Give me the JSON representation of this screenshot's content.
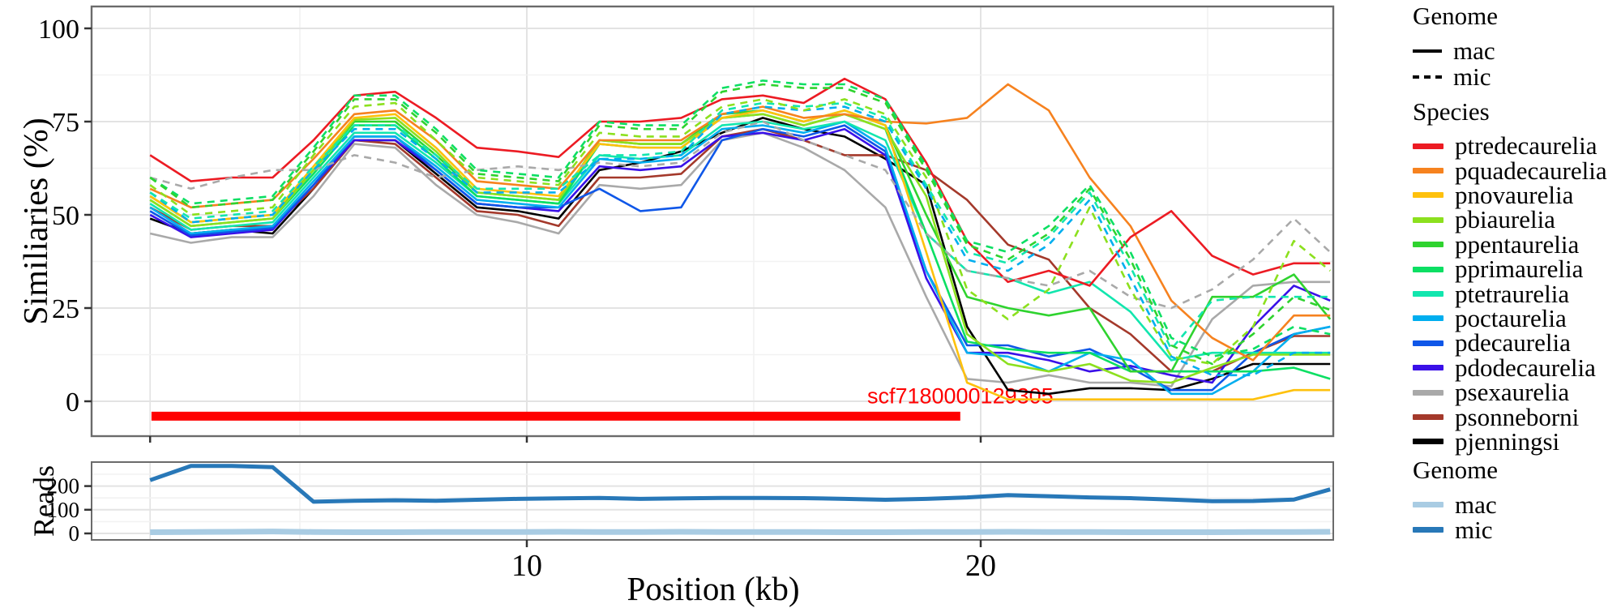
{
  "styles": {
    "background": "#ffffff",
    "grid_major": "#e3e3e3",
    "grid_minor": "#f2f2f2",
    "panel_border": "#6b6b6b",
    "tick_color": "#333333",
    "annotation_red": "#ff0000",
    "reads_mac_color": "#a9cce3",
    "reads_mic_color": "#2878b8"
  },
  "legends": {
    "genome_top": {
      "title": "Genome",
      "items": [
        {
          "label": "mac",
          "style": "solid"
        },
        {
          "label": "mic",
          "style": "dashed"
        }
      ]
    },
    "species": {
      "title": "Species",
      "items": [
        {
          "label": "ptredecaurelia",
          "color": "#ec1b23"
        },
        {
          "label": "pquadecaurelia",
          "color": "#f6821f"
        },
        {
          "label": "pnovaurelia",
          "color": "#fec10d"
        },
        {
          "label": "pbiaurelia",
          "color": "#8ce01e"
        },
        {
          "label": "ppentaurelia",
          "color": "#2fd32f"
        },
        {
          "label": "pprimaurelia",
          "color": "#0cdf63"
        },
        {
          "label": "ptetraurelia",
          "color": "#12e6ae"
        },
        {
          "label": "poctaurelia",
          "color": "#00aeef"
        },
        {
          "label": "pdecaurelia",
          "color": "#0f57e8"
        },
        {
          "label": "pdodecaurelia",
          "color": "#3a10e8"
        },
        {
          "label": "psexaurelia",
          "color": "#a9a9a9"
        },
        {
          "label": "psonneborni",
          "color": "#a4392b"
        },
        {
          "label": "pjenningsi",
          "color": "#000000"
        }
      ]
    },
    "genome_bottom": {
      "title": "Genome",
      "items": [
        {
          "label": "mac",
          "color": "#a9cce3"
        },
        {
          "label": "mic",
          "color": "#2878b8"
        }
      ]
    }
  },
  "chart_data": [
    {
      "type": "line",
      "panel": "similarity",
      "ylabel": "Similiaries (%)",
      "xlabel": "Position (kb)",
      "y_ticks": [
        0,
        25,
        50,
        75,
        100
      ],
      "y_minor": [
        12.5,
        37.5,
        62.5,
        87.5
      ],
      "x_ticks": [
        10,
        20
      ],
      "x_minor": [
        5,
        15,
        25
      ],
      "x_extra_gridlines_kb": [
        1.7
      ],
      "ylim": [
        -9.5,
        106
      ],
      "xlim": [
        0.4,
        28.4
      ],
      "legend_position": "right",
      "grid": true,
      "annotation": {
        "label": "scf7180000129305",
        "bar_start_kb": 1.73,
        "bar_end_kb": 19.55,
        "bar_value": -4,
        "color": "#ff0000"
      },
      "x_kb": [
        1.7,
        2.6,
        3.5,
        4.4,
        5.3,
        6.2,
        7.1,
        8.0,
        8.9,
        9.8,
        10.7,
        11.6,
        12.5,
        13.4,
        14.3,
        15.2,
        16.1,
        17.0,
        17.9,
        18.8,
        19.7,
        20.6,
        21.5,
        22.4,
        23.3,
        24.2,
        25.1,
        26.0,
        26.9,
        27.7
      ],
      "series": [
        {
          "species": "psexaurelia",
          "genome": "mac",
          "color": "#a9a9a9",
          "dashed": false,
          "values": [
            45,
            42.5,
            44,
            44,
            55,
            69,
            68,
            58,
            50,
            48,
            45,
            58,
            57,
            58,
            70,
            72,
            68,
            62,
            52,
            28,
            6,
            5,
            7,
            5,
            5,
            4,
            22,
            31,
            32,
            32
          ]
        },
        {
          "species": "pjenningsi",
          "genome": "mac",
          "color": "#000000",
          "dashed": false,
          "values": [
            49,
            45,
            46,
            45,
            57,
            70,
            70,
            61,
            52,
            51,
            49,
            62,
            64,
            67,
            72,
            76,
            73,
            71,
            65,
            58,
            20,
            3,
            2,
            3.5,
            3.5,
            3,
            6,
            10,
            10,
            10
          ]
        },
        {
          "species": "psonneborni",
          "genome": "mac",
          "color": "#a4392b",
          "dashed": false,
          "values": [
            52,
            46,
            47,
            47,
            57,
            70,
            69,
            60,
            51,
            50,
            47,
            60,
            60,
            61,
            71,
            73,
            70,
            66,
            66,
            62,
            54,
            42,
            38,
            25,
            18,
            8,
            8,
            13,
            17.5,
            17.5
          ]
        },
        {
          "species": "pdodecaurelia",
          "genome": "mac",
          "color": "#3a10e8",
          "dashed": false,
          "values": [
            50,
            44,
            45,
            46,
            58,
            70,
            70,
            62,
            53,
            52,
            51,
            63,
            62,
            63,
            71,
            72,
            70,
            73,
            66,
            33,
            13,
            13,
            11,
            8,
            9.5,
            7,
            5,
            20,
            31,
            27
          ]
        },
        {
          "species": "pdecaurelia",
          "genome": "mac",
          "color": "#0f57e8",
          "dashed": false,
          "values": [
            51,
            44.5,
            45.5,
            46.5,
            58,
            71,
            71,
            62,
            53,
            52,
            52,
            57,
            51,
            52,
            70,
            73,
            71,
            74,
            67,
            35,
            15,
            15,
            12,
            14,
            9,
            3,
            3,
            13,
            18,
            20
          ]
        },
        {
          "species": "poctaurelia",
          "genome": "mac",
          "color": "#00aeef",
          "dashed": false,
          "values": [
            52,
            45,
            46,
            47,
            59,
            71,
            71,
            63,
            54,
            53,
            52,
            65,
            64,
            65,
            73,
            74,
            72,
            75,
            68,
            35,
            13,
            12,
            8,
            13,
            11,
            2,
            2,
            8,
            18,
            20
          ]
        },
        {
          "species": "ptetraurelia",
          "genome": "mac",
          "color": "#12e6ae",
          "dashed": false,
          "values": [
            53,
            46,
            47,
            48,
            60,
            72,
            72,
            64,
            55,
            54,
            53,
            66,
            65,
            66,
            74,
            75,
            73,
            75,
            70,
            45,
            35,
            33,
            29,
            32,
            24,
            11,
            13,
            13,
            13,
            13
          ]
        },
        {
          "species": "pprimaurelia",
          "genome": "mac",
          "color": "#0cdf63",
          "dashed": false,
          "values": [
            54,
            47,
            48,
            49,
            61,
            74,
            74,
            65,
            55,
            54,
            53,
            69,
            68,
            68,
            76,
            77,
            74,
            77,
            73,
            45,
            16,
            14,
            13,
            13,
            8,
            8,
            8,
            8,
            9,
            6
          ]
        },
        {
          "species": "ppentaurelia",
          "genome": "mac",
          "color": "#2fd32f",
          "dashed": false,
          "values": [
            55,
            48,
            49,
            50,
            62,
            75,
            75,
            66,
            56,
            55,
            54,
            70,
            69,
            69,
            77,
            78,
            75,
            78,
            74,
            50,
            28,
            25,
            23,
            25,
            8,
            8,
            28,
            28,
            34,
            22
          ]
        },
        {
          "species": "pbiaurelia",
          "genome": "mac",
          "color": "#8ce01e",
          "dashed": false,
          "values": [
            54,
            47,
            48,
            49,
            62,
            75.5,
            76,
            67,
            56,
            55,
            54,
            70,
            69,
            69,
            76,
            77,
            74,
            77,
            73,
            55,
            18,
            10,
            8,
            10,
            5.5,
            5,
            9,
            12.5,
            12.5,
            12.5
          ]
        },
        {
          "species": "pnovaurelia",
          "genome": "mac",
          "color": "#fec10d",
          "dashed": false,
          "values": [
            55,
            48,
            49,
            50,
            63,
            76,
            77,
            68,
            57,
            56,
            55,
            69,
            68,
            68,
            76,
            78,
            75,
            78,
            74,
            40,
            5,
            0.5,
            0.5,
            0.5,
            0.5,
            0.5,
            0.5,
            0.5,
            3,
            3
          ]
        },
        {
          "species": "pquadecaurelia",
          "genome": "mac",
          "color": "#f6821f",
          "dashed": false,
          "values": [
            57,
            52,
            53,
            54,
            65,
            77,
            78,
            70,
            59,
            58,
            57,
            70,
            70,
            70,
            77,
            79,
            76,
            77,
            75,
            74.5,
            76,
            85,
            78,
            60,
            47,
            27,
            17,
            11,
            23,
            23
          ]
        },
        {
          "species": "ptredecaurelia",
          "genome": "mac",
          "color": "#ec1b23",
          "dashed": false,
          "values": [
            66,
            59,
            60,
            60,
            70,
            82,
            83,
            76,
            68,
            67,
            65.5,
            75,
            75,
            76,
            81,
            82,
            80,
            86.5,
            81,
            64,
            43,
            32,
            35,
            31,
            44,
            51,
            39,
            34,
            37,
            37
          ]
        },
        {
          "species": "psexaurelia",
          "genome": "mic",
          "color": "#a9a9a9",
          "dashed": true,
          "values": [
            60,
            57,
            60,
            62,
            62,
            66,
            64,
            60,
            62,
            63,
            62,
            64,
            63,
            64,
            72,
            75,
            70,
            66,
            62,
            45,
            35,
            33,
            31,
            35,
            28,
            25,
            30,
            38,
            49,
            40
          ]
        },
        {
          "species": "poctaurelia",
          "genome": "mic",
          "color": "#00aeef",
          "dashed": true,
          "values": [
            56,
            48,
            49,
            50,
            62,
            73,
            73,
            65,
            56,
            56,
            56,
            65,
            65,
            66,
            77,
            79,
            78,
            79,
            75,
            57,
            38,
            35,
            42,
            54,
            33,
            12,
            7,
            7,
            13,
            13
          ]
        },
        {
          "species": "ptetraurelia",
          "genome": "mic",
          "color": "#12e6ae",
          "dashed": true,
          "values": [
            56,
            49,
            50,
            51,
            63,
            74,
            74,
            66,
            57,
            57,
            57,
            66,
            66,
            67,
            78,
            80,
            79,
            80,
            76,
            58,
            40,
            37,
            44,
            56,
            36,
            14,
            27,
            28,
            28,
            28
          ]
        },
        {
          "species": "pprimaurelia",
          "genome": "mic",
          "color": "#0cdf63",
          "dashed": true,
          "values": [
            60,
            53,
            54,
            55,
            68,
            82,
            82,
            73,
            62,
            61,
            60,
            75,
            74,
            74,
            84,
            86,
            85,
            85,
            81,
            63,
            43,
            40,
            47,
            58,
            40,
            17,
            12,
            14,
            20,
            18
          ]
        },
        {
          "species": "ppentaurelia",
          "genome": "mic",
          "color": "#2fd32f",
          "dashed": true,
          "values": [
            60,
            52,
            53,
            54,
            67,
            81,
            81,
            72,
            61,
            60,
            59,
            74,
            73,
            73,
            83,
            85,
            84,
            84,
            80,
            62,
            42,
            38,
            45,
            57,
            38,
            15,
            10,
            18,
            28,
            24.5
          ]
        },
        {
          "species": "pbiaurelia",
          "genome": "mic",
          "color": "#8ce01e",
          "dashed": true,
          "values": [
            58,
            50,
            51,
            52,
            66,
            79,
            80,
            70,
            60,
            59,
            58,
            72,
            71,
            71,
            79,
            81,
            78,
            81,
            77,
            60,
            30,
            22,
            30,
            52,
            30,
            12,
            10,
            20,
            43,
            35
          ]
        }
      ]
    },
    {
      "type": "line",
      "panel": "reads",
      "ylabel": "Reads",
      "y_ticks": [
        0,
        100,
        200
      ],
      "y_minor": [
        50,
        150,
        250
      ],
      "ylim": [
        -28,
        300
      ],
      "grid": true,
      "x_kb": [
        1.7,
        2.6,
        3.5,
        4.4,
        5.3,
        6.2,
        7.1,
        8.0,
        8.9,
        9.8,
        10.7,
        11.6,
        12.5,
        13.4,
        14.3,
        15.2,
        16.1,
        17.0,
        17.9,
        18.8,
        19.7,
        20.6,
        21.5,
        22.4,
        23.3,
        24.2,
        25.1,
        26.0,
        26.9,
        27.7
      ],
      "series": [
        {
          "genome": "mac",
          "color": "#a9cce3",
          "width": 7,
          "values": [
            5,
            6,
            7,
            8,
            6,
            5,
            5,
            6,
            6,
            6,
            7,
            6,
            6,
            7,
            6,
            6,
            6,
            5,
            5,
            6,
            6,
            7,
            6,
            6,
            5,
            5,
            5,
            6,
            6,
            7
          ]
        },
        {
          "genome": "mic",
          "color": "#2878b8",
          "width": 5,
          "values": [
            225,
            285,
            285,
            280,
            134,
            138,
            140,
            138,
            142,
            146,
            148,
            150,
            146,
            148,
            150,
            150,
            149,
            146,
            142,
            146,
            152,
            162,
            157,
            152,
            149,
            143,
            136,
            137,
            143,
            186
          ]
        }
      ]
    }
  ]
}
